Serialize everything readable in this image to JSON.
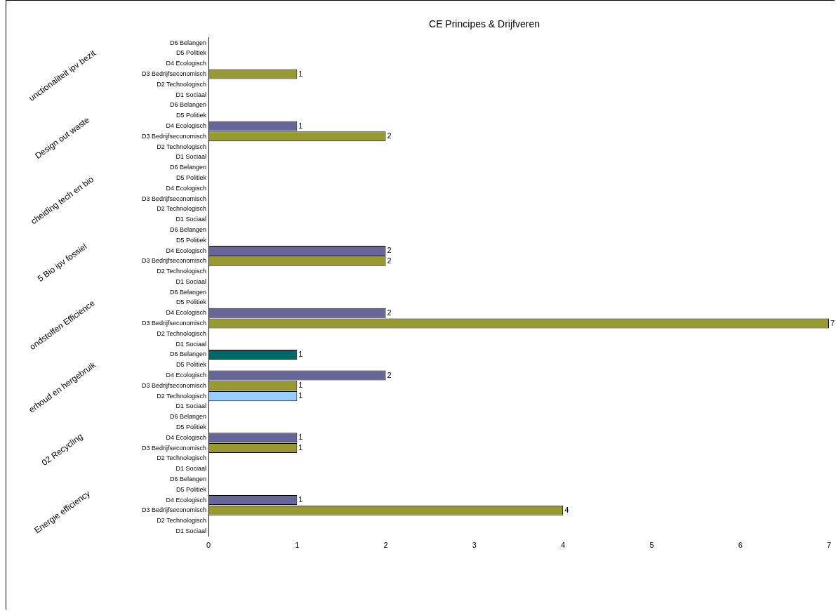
{
  "chart_data": {
    "type": "bar",
    "orientation": "horizontal",
    "title": "CE Principes & Drijfveren",
    "categories": [
      "D6 Belangen",
      "D5 Politiek",
      "D4 Ecologisch",
      "D3 Bedrijfseconomisch",
      "D2 Technologisch",
      "D1 Sociaal",
      "D6 Belangen",
      "D5 Politiek",
      "D4 Ecologisch",
      "D3 Bedrijfseconomisch",
      "D2 Technologisch",
      "D1 Sociaal",
      "D6 Belangen",
      "D5 Politiek",
      "D4 Ecologisch",
      "D3 Bedrijfseconomisch",
      "D2 Technologisch",
      "D1 Sociaal",
      "D6 Belangen",
      "D5 Politiek",
      "D4 Ecologisch",
      "D3 Bedrijfseconomisch",
      "D2 Technologisch",
      "D1 Sociaal",
      "D6 Belangen",
      "D5 Politiek",
      "D4 Ecologisch",
      "D3 Bedrijfseconomisch",
      "D2 Technologisch",
      "D1 Sociaal",
      "D6 Belangen",
      "D5 Politiek",
      "D4 Ecologisch",
      "D3 Bedrijfseconomisch",
      "D2 Technologisch",
      "D1 Sociaal",
      "D6 Belangen",
      "D5 Politiek",
      "D4 Ecologisch",
      "D3 Bedrijfseconomisch",
      "D2 Technologisch",
      "D1 Sociaal",
      "D6 Belangen",
      "D5 Politiek",
      "D4 Ecologisch",
      "D3 Bedrijfseconomisch",
      "D2 Technologisch",
      "D1 Sociaal"
    ],
    "values": [
      null,
      null,
      null,
      1,
      null,
      null,
      null,
      null,
      1,
      2,
      null,
      null,
      null,
      null,
      null,
      null,
      null,
      null,
      null,
      null,
      2,
      2,
      null,
      null,
      null,
      null,
      2,
      7,
      null,
      null,
      1,
      null,
      2,
      1,
      1,
      null,
      null,
      null,
      1,
      1,
      null,
      null,
      null,
      null,
      1,
      4,
      null,
      null
    ],
    "colors": [
      null,
      null,
      null,
      "#999933",
      null,
      null,
      null,
      null,
      "#666699",
      "#999933",
      null,
      null,
      null,
      null,
      null,
      null,
      null,
      null,
      null,
      null,
      "#666699",
      "#999933",
      null,
      null,
      null,
      null,
      "#666699",
      "#999933",
      null,
      null,
      "#006666",
      null,
      "#666699",
      "#999933",
      "#99ccff",
      null,
      null,
      null,
      "#666699",
      "#999933",
      null,
      null,
      null,
      null,
      "#666699",
      "#999933",
      null,
      null
    ],
    "xlim": [
      0,
      7
    ],
    "xticks": [
      0,
      1,
      2,
      3,
      4,
      5,
      6,
      7
    ],
    "grid": false,
    "data_labels": true,
    "annotations": [
      "unctionaliteit ipv bezit",
      "Design out waste",
      "cheiding tech en bio",
      "5 Bio ipv fossiel",
      "ondstoffen Efficience",
      "erhoud en hergebruik",
      "02 Recycling",
      "Energie efficiency"
    ]
  }
}
